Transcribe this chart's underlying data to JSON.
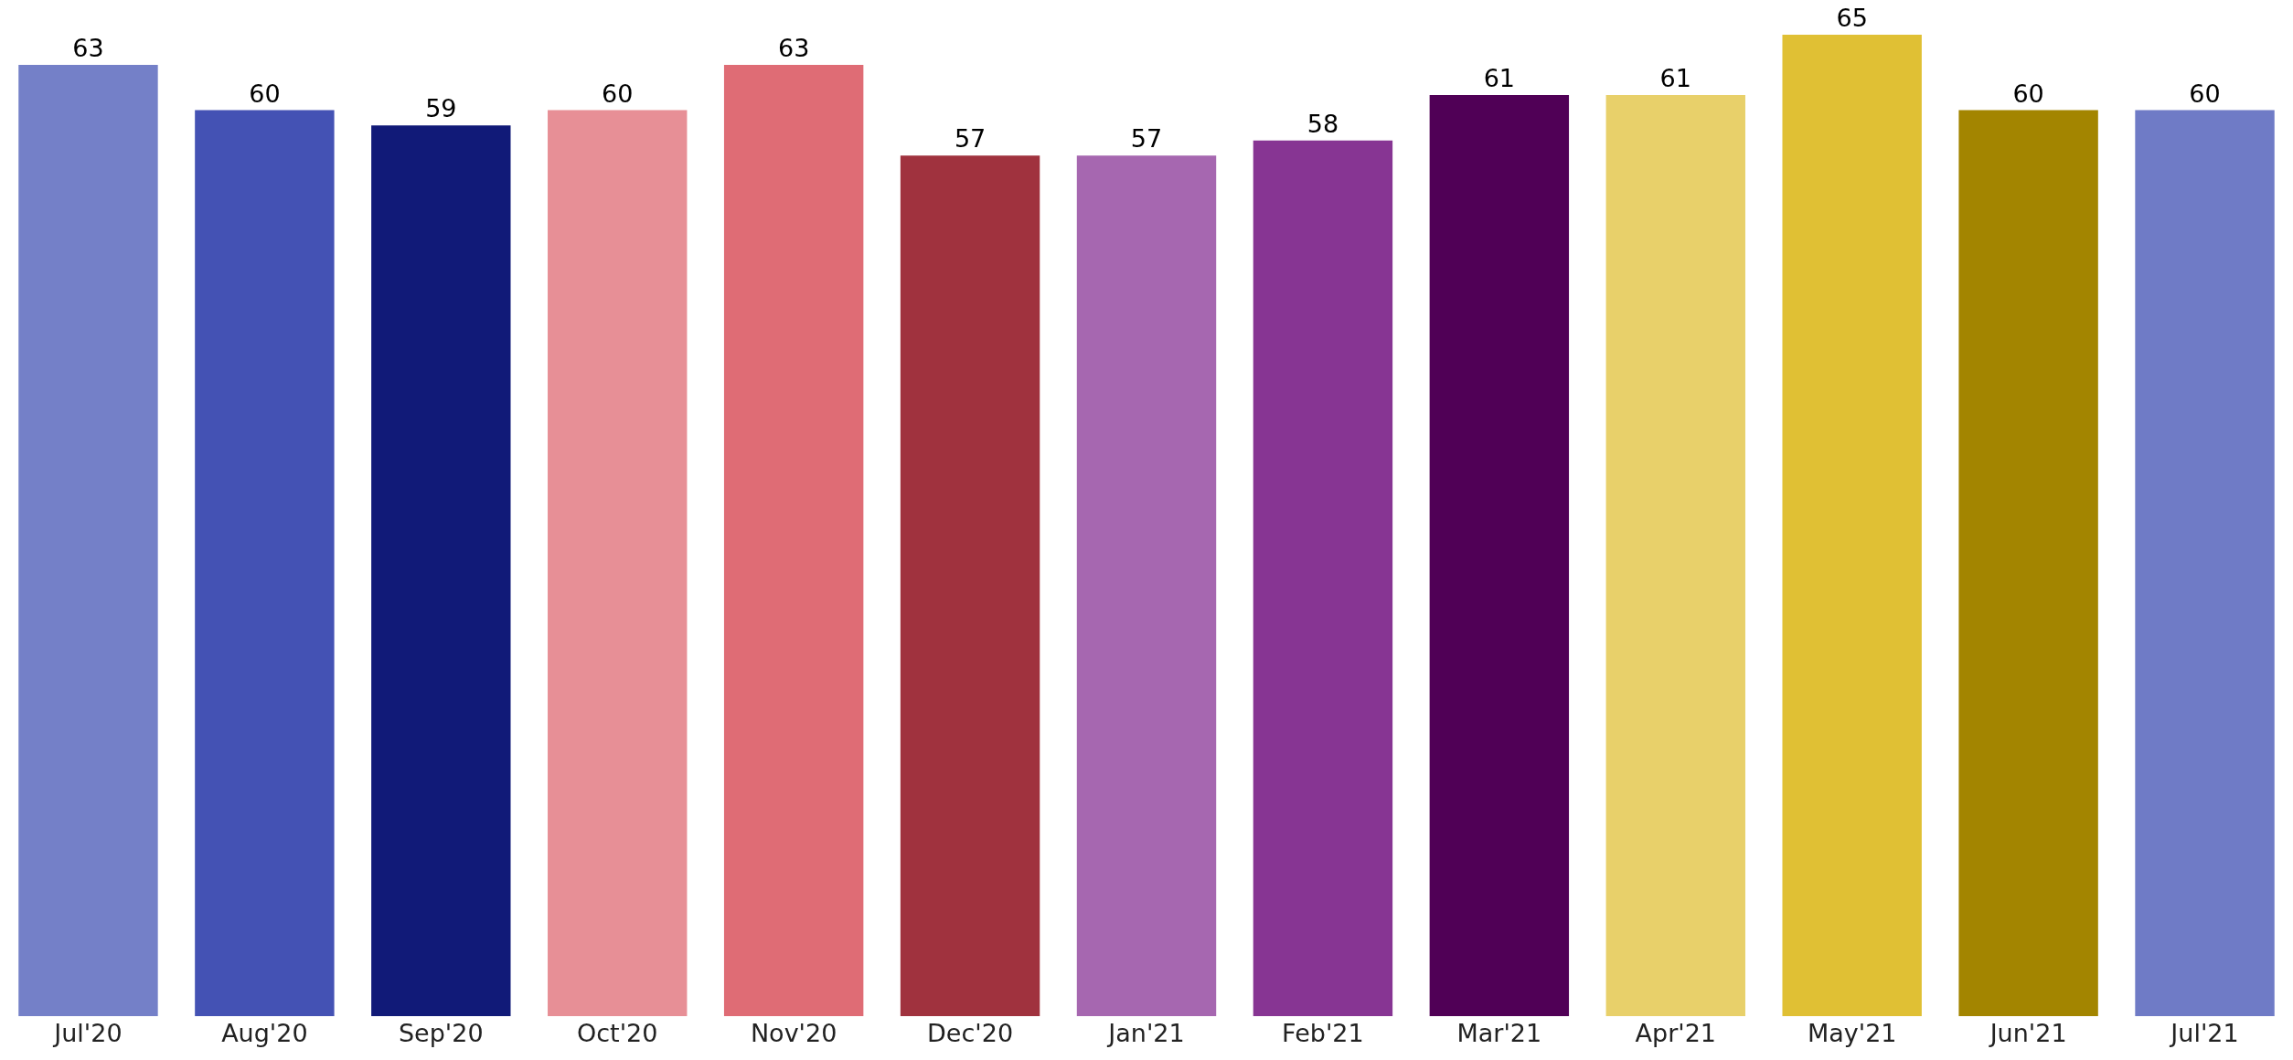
{
  "chart_data": {
    "type": "bar",
    "categories": [
      "Jul'20",
      "Aug'20",
      "Sep'20",
      "Oct'20",
      "Nov'20",
      "Dec'20",
      "Jan'21",
      "Feb'21",
      "Mar'21",
      "Apr'21",
      "May'21",
      "Jun'21",
      "Jul'21"
    ],
    "values": [
      63,
      60,
      59,
      60,
      63,
      57,
      57,
      58,
      61,
      61,
      65,
      60,
      60
    ],
    "colors": [
      "#7480c8",
      "#4452b4",
      "#111a78",
      "#e78f96",
      "#df6c75",
      "#a0323e",
      "#a667b0",
      "#873593",
      "#500056",
      "#e8d06a",
      "#e0c034",
      "#a38500",
      "#6f7bc6"
    ],
    "data_labels": true
  }
}
